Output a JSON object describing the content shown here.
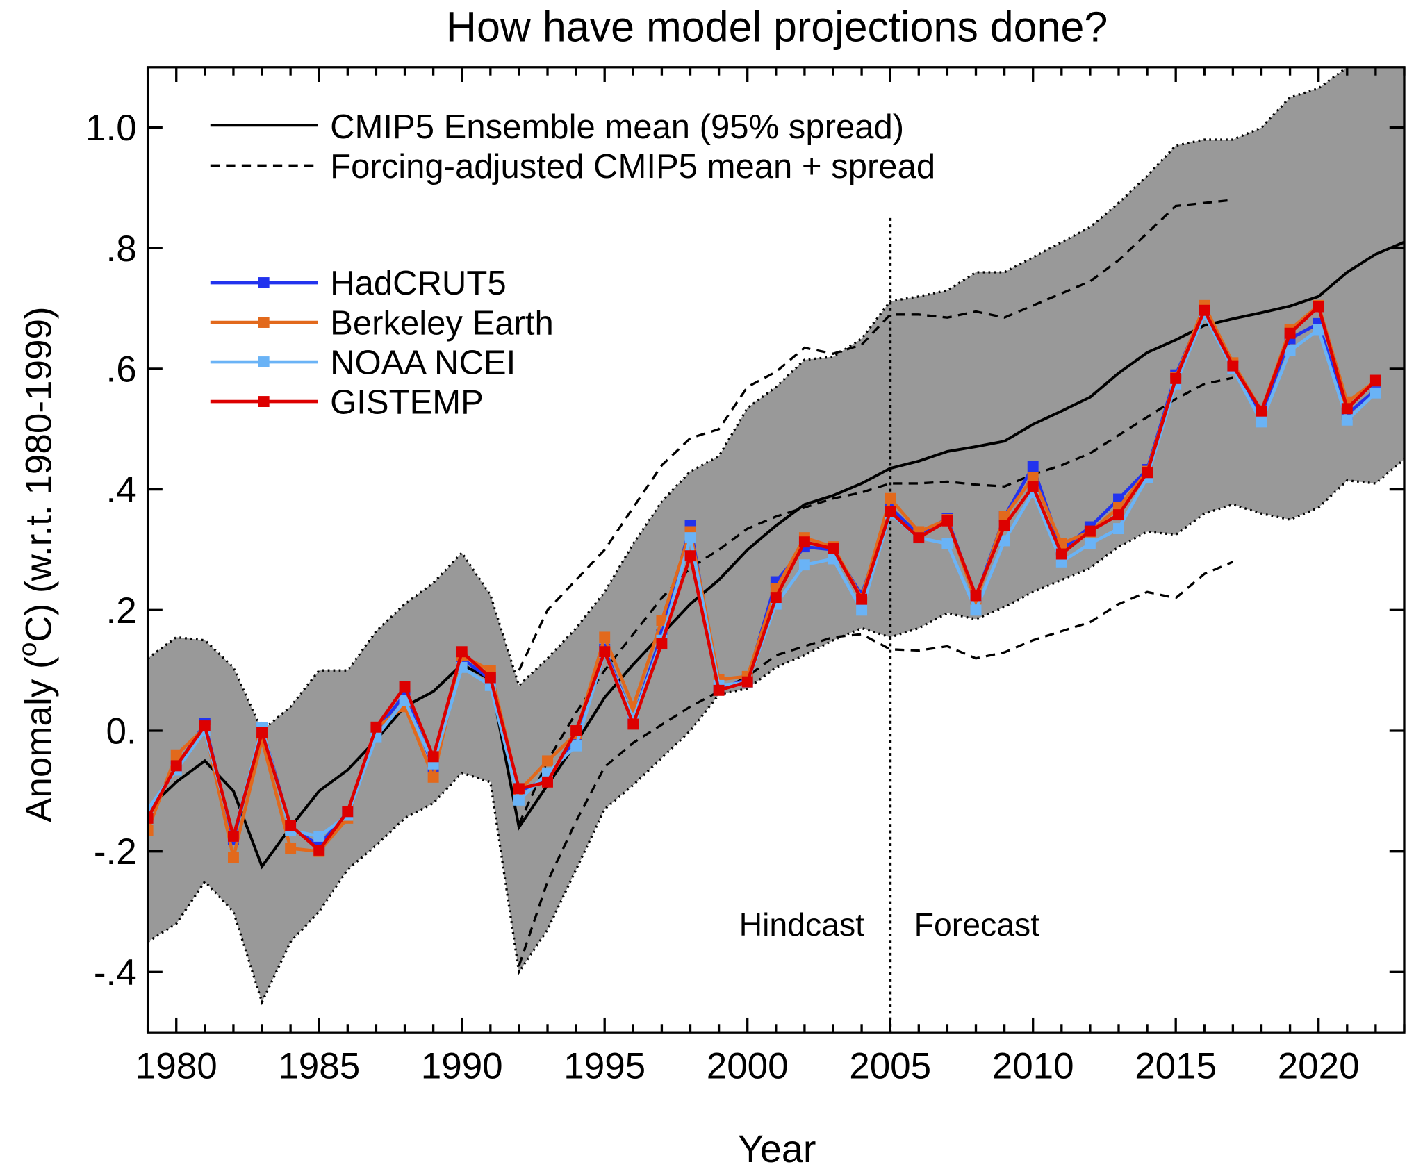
{
  "chart_data": {
    "type": "line",
    "title": "How have model projections done?",
    "xlabel": "Year",
    "ylabel": "Anomaly (oC) (w.r.t. 1980-1999)",
    "ylabel_parts": {
      "pre": "Anomaly (",
      "sup": "o",
      "post": "C) (w.r.t. 1980-1999)"
    },
    "xlim": [
      1979,
      2023
    ],
    "ylim": [
      -0.5,
      1.1
    ],
    "x_ticks": [
      1980,
      1985,
      1990,
      1995,
      2000,
      2005,
      2010,
      2015,
      2020
    ],
    "x_tick_labels": [
      "1980",
      "1985",
      "1990",
      "1995",
      "2000",
      "2005",
      "2010",
      "2015",
      "2020"
    ],
    "y_ticks": [
      1.0,
      0.8,
      0.6,
      0.4,
      0.2,
      0.0,
      -0.2,
      -0.4
    ],
    "y_tick_labels": [
      "1.0",
      ".8",
      ".6",
      ".4",
      ".2",
      "0.",
      "-.2",
      "-.4"
    ],
    "grid": false,
    "legend_placement": "top-left",
    "annotations": {
      "hindcast": "Hindcast",
      "forecast": "Forecast",
      "divider_year": 2005
    },
    "model": {
      "name": "CMIP5 Ensemble mean (95% spread)",
      "years": [
        1979,
        1980,
        1981,
        1982,
        1983,
        1984,
        1985,
        1986,
        1987,
        1988,
        1989,
        1990,
        1991,
        1992,
        1993,
        1994,
        1995,
        1996,
        1997,
        1998,
        1999,
        2000,
        2001,
        2002,
        2003,
        2004,
        2005,
        2006,
        2007,
        2008,
        2009,
        2010,
        2011,
        2012,
        2013,
        2014,
        2015,
        2016,
        2017,
        2018,
        2019,
        2020,
        2021,
        2022,
        2023
      ],
      "mean": [
        -0.13,
        -0.085,
        -0.05,
        -0.1,
        -0.225,
        -0.16,
        -0.1,
        -0.065,
        -0.015,
        0.04,
        0.065,
        0.11,
        0.085,
        -0.16,
        -0.09,
        -0.02,
        0.055,
        0.11,
        0.16,
        0.21,
        0.25,
        0.3,
        0.34,
        0.375,
        0.39,
        0.41,
        0.435,
        0.447,
        0.463,
        0.471,
        0.48,
        0.508,
        0.53,
        0.553,
        0.593,
        0.627,
        0.648,
        0.672,
        0.683,
        0.693,
        0.704,
        0.72,
        0.76,
        0.79,
        0.81
      ],
      "upper": [
        0.12,
        0.155,
        0.15,
        0.105,
        0.0,
        0.04,
        0.1,
        0.1,
        0.165,
        0.21,
        0.245,
        0.295,
        0.225,
        0.075,
        0.12,
        0.17,
        0.23,
        0.31,
        0.38,
        0.43,
        0.455,
        0.535,
        0.57,
        0.615,
        0.62,
        0.65,
        0.712,
        0.72,
        0.73,
        0.76,
        0.76,
        0.785,
        0.81,
        0.835,
        0.875,
        0.92,
        0.97,
        0.98,
        0.98,
        1.0,
        1.05,
        1.065,
        1.1,
        1.13,
        1.15
      ],
      "lower": [
        -0.35,
        -0.32,
        -0.25,
        -0.3,
        -0.45,
        -0.35,
        -0.3,
        -0.23,
        -0.19,
        -0.145,
        -0.12,
        -0.07,
        -0.085,
        -0.4,
        -0.33,
        -0.23,
        -0.13,
        -0.09,
        -0.045,
        0.0,
        0.06,
        0.07,
        0.105,
        0.125,
        0.15,
        0.17,
        0.155,
        0.17,
        0.195,
        0.185,
        0.205,
        0.23,
        0.25,
        0.27,
        0.305,
        0.33,
        0.325,
        0.36,
        0.375,
        0.36,
        0.35,
        0.37,
        0.415,
        0.41,
        0.45
      ]
    },
    "forcing_adjusted": {
      "name": "Forcing-adjusted CMIP5 mean + spread",
      "years": [
        1992,
        1993,
        1994,
        1995,
        1996,
        1997,
        1998,
        1999,
        2000,
        2001,
        2002,
        2003,
        2004,
        2005,
        2006,
        2007,
        2008,
        2009,
        2010,
        2011,
        2012,
        2013,
        2014,
        2015,
        2016,
        2017
      ],
      "mean": [
        -0.155,
        -0.05,
        0.03,
        0.1,
        0.16,
        0.22,
        0.27,
        0.3,
        0.335,
        0.355,
        0.37,
        0.385,
        0.395,
        0.41,
        0.41,
        0.413,
        0.408,
        0.405,
        0.425,
        0.44,
        0.46,
        0.49,
        0.52,
        0.55,
        0.575,
        0.585
      ],
      "upper": [
        0.1,
        0.2,
        0.25,
        0.3,
        0.37,
        0.44,
        0.485,
        0.5,
        0.57,
        0.595,
        0.635,
        0.625,
        0.64,
        0.69,
        0.69,
        0.685,
        0.695,
        0.685,
        0.705,
        0.725,
        0.745,
        0.78,
        0.825,
        0.87,
        0.875,
        0.88
      ],
      "lower": [
        -0.39,
        -0.25,
        -0.15,
        -0.06,
        -0.02,
        0.01,
        0.04,
        0.065,
        0.09,
        0.125,
        0.14,
        0.155,
        0.16,
        0.135,
        0.133,
        0.14,
        0.12,
        0.13,
        0.15,
        0.165,
        0.18,
        0.21,
        0.23,
        0.22,
        0.26,
        0.28
      ]
    },
    "x": [
      1979,
      1980,
      1981,
      1982,
      1983,
      1984,
      1985,
      1986,
      1987,
      1988,
      1989,
      1990,
      1991,
      1992,
      1993,
      1994,
      1995,
      1996,
      1997,
      1998,
      1999,
      2000,
      2001,
      2002,
      2003,
      2004,
      2005,
      2006,
      2007,
      2008,
      2009,
      2010,
      2011,
      2012,
      2013,
      2014,
      2015,
      2016,
      2017,
      2018,
      2019,
      2020,
      2021,
      2022
    ],
    "series": [
      {
        "name": "HadCRUT5",
        "color": "#2233ee",
        "values": [
          -0.14,
          -0.06,
          0.012,
          -0.18,
          0.005,
          -0.16,
          -0.19,
          -0.135,
          0.0,
          0.06,
          -0.06,
          0.12,
          0.085,
          -0.1,
          -0.08,
          -0.01,
          0.135,
          0.02,
          0.16,
          0.34,
          0.07,
          0.085,
          0.247,
          0.305,
          0.3,
          0.225,
          0.37,
          0.325,
          0.352,
          0.22,
          0.355,
          0.438,
          0.3,
          0.338,
          0.384,
          0.433,
          0.59,
          0.7,
          0.605,
          0.525,
          0.65,
          0.675,
          0.525,
          0.565
        ]
      },
      {
        "name": "Berkeley Earth",
        "color": "#e2691c",
        "values": [
          -0.165,
          -0.04,
          0.005,
          -0.21,
          -0.015,
          -0.195,
          -0.2,
          -0.145,
          0.005,
          0.04,
          -0.077,
          0.125,
          0.1,
          -0.1,
          -0.05,
          -0.005,
          0.155,
          0.04,
          0.183,
          0.33,
          0.085,
          0.09,
          0.235,
          0.32,
          0.305,
          0.22,
          0.385,
          0.33,
          0.35,
          0.215,
          0.355,
          0.42,
          0.31,
          0.33,
          0.37,
          0.43,
          0.585,
          0.705,
          0.61,
          0.53,
          0.665,
          0.705,
          0.545,
          0.58
        ]
      },
      {
        "name": "NOAA NCEI",
        "color": "#6ab3f6",
        "values": [
          -0.13,
          -0.065,
          0.0,
          -0.175,
          0.005,
          -0.165,
          -0.175,
          -0.14,
          -0.01,
          0.05,
          -0.055,
          0.105,
          0.075,
          -0.115,
          -0.07,
          -0.025,
          0.13,
          0.02,
          0.15,
          0.32,
          0.075,
          0.08,
          0.21,
          0.275,
          0.285,
          0.2,
          0.36,
          0.32,
          0.31,
          0.2,
          0.315,
          0.395,
          0.28,
          0.31,
          0.335,
          0.42,
          0.575,
          0.69,
          0.6,
          0.512,
          0.63,
          0.665,
          0.515,
          0.56
        ]
      },
      {
        "name": "GISTEMP",
        "color": "#dd0000",
        "values": [
          -0.145,
          -0.058,
          0.008,
          -0.175,
          -0.003,
          -0.157,
          -0.198,
          -0.134,
          0.006,
          0.073,
          -0.043,
          0.131,
          0.088,
          -0.096,
          -0.085,
          0.0,
          0.131,
          0.011,
          0.145,
          0.29,
          0.067,
          0.081,
          0.221,
          0.313,
          0.302,
          0.218,
          0.363,
          0.32,
          0.348,
          0.224,
          0.34,
          0.405,
          0.293,
          0.331,
          0.358,
          0.428,
          0.584,
          0.697,
          0.605,
          0.53,
          0.659,
          0.703,
          0.534,
          0.581
        ]
      }
    ],
    "colors": {
      "spread": "#999999",
      "model_line": "#000000"
    }
  }
}
